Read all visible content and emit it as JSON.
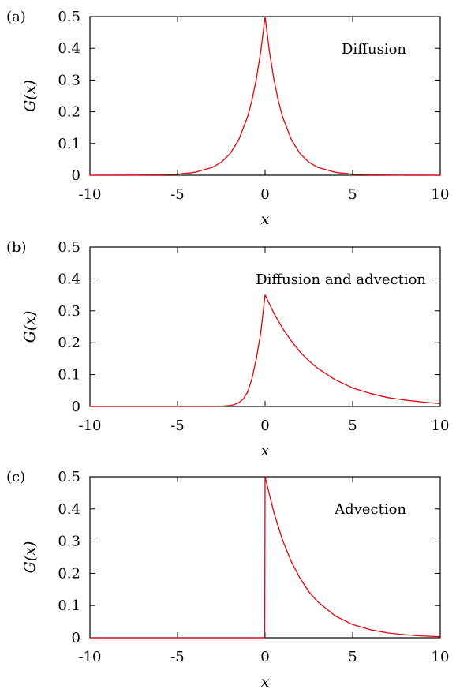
{
  "chart_data": [
    {
      "type": "line",
      "panel_label": "(a)",
      "annotation": "Diffusion",
      "xlabel": "x",
      "ylabel": "G(x)",
      "xlim": [
        -10,
        10
      ],
      "ylim": [
        0,
        0.5
      ],
      "xticks": [
        -10,
        -5,
        0,
        5,
        10
      ],
      "yticks": [
        0,
        0.1,
        0.2,
        0.3,
        0.4,
        0.5
      ],
      "xtick_labels": [
        "-10",
        "-5",
        "0",
        "5",
        "10"
      ],
      "ytick_labels": [
        "0",
        "0.1",
        "0.2",
        "0.3",
        "0.4",
        "0.5"
      ],
      "grid": false,
      "line_color": "#e8000b",
      "series": [
        {
          "x": [
            -10,
            -8,
            -6,
            -5,
            -4,
            -3,
            -2.5,
            -2,
            -1.5,
            -1,
            -0.75,
            -0.5,
            -0.25,
            0,
            0.25,
            0.5,
            0.75,
            1,
            1.5,
            2,
            2.5,
            3,
            4,
            5,
            6,
            8,
            10
          ],
          "values": [
            0.0,
            0.0002,
            0.0012,
            0.0034,
            0.0092,
            0.025,
            0.041,
            0.068,
            0.112,
            0.184,
            0.236,
            0.303,
            0.389,
            0.5,
            0.389,
            0.303,
            0.236,
            0.184,
            0.112,
            0.068,
            0.041,
            0.025,
            0.0092,
            0.0034,
            0.0012,
            0.0002,
            0.0
          ]
        }
      ]
    },
    {
      "type": "line",
      "panel_label": "(b)",
      "annotation": "Diffusion and advection",
      "xlabel": "x",
      "ylabel": "G(x)",
      "xlim": [
        -10,
        10
      ],
      "ylim": [
        0,
        0.5
      ],
      "xticks": [
        -10,
        -5,
        0,
        5,
        10
      ],
      "yticks": [
        0,
        0.1,
        0.2,
        0.3,
        0.4,
        0.5
      ],
      "xtick_labels": [
        "-10",
        "-5",
        "0",
        "5",
        "10"
      ],
      "ytick_labels": [
        "0",
        "0.1",
        "0.2",
        "0.3",
        "0.4",
        "0.5"
      ],
      "grid": false,
      "line_color": "#e8000b",
      "series": [
        {
          "x": [
            -10,
            -4,
            -3,
            -2.5,
            -2,
            -1.75,
            -1.5,
            -1.25,
            -1,
            -0.75,
            -0.5,
            -0.25,
            0,
            0.5,
            1,
            1.5,
            2,
            2.5,
            3,
            4,
            5,
            6,
            7,
            8,
            9,
            10
          ],
          "values": [
            0.0,
            0.0,
            0.0002,
            0.0008,
            0.003,
            0.006,
            0.012,
            0.023,
            0.045,
            0.087,
            0.15,
            0.23,
            0.35,
            0.293,
            0.245,
            0.205,
            0.171,
            0.143,
            0.12,
            0.084,
            0.058,
            0.041,
            0.028,
            0.02,
            0.014,
            0.009
          ]
        }
      ]
    },
    {
      "type": "line",
      "panel_label": "(c)",
      "annotation": "Advection",
      "xlabel": "x",
      "ylabel": "G(x)",
      "xlim": [
        -10,
        10
      ],
      "ylim": [
        0,
        0.5
      ],
      "xticks": [
        -10,
        -5,
        0,
        5,
        10
      ],
      "yticks": [
        0,
        0.1,
        0.2,
        0.3,
        0.4,
        0.5
      ],
      "xtick_labels": [
        "-10",
        "-5",
        "0",
        "5",
        "10"
      ],
      "ytick_labels": [
        "0",
        "0.1",
        "0.2",
        "0.3",
        "0.4",
        "0.5"
      ],
      "grid": false,
      "line_color": "#e8000b",
      "series": [
        {
          "x": [
            -10,
            -0.02,
            0,
            0.5,
            1,
            1.5,
            2,
            2.5,
            3,
            4,
            5,
            6,
            7,
            8,
            9,
            10
          ],
          "values": [
            0.0,
            0.0,
            0.5,
            0.389,
            0.303,
            0.236,
            0.184,
            0.143,
            0.112,
            0.068,
            0.041,
            0.025,
            0.015,
            0.0092,
            0.0056,
            0.0034
          ]
        }
      ]
    }
  ]
}
